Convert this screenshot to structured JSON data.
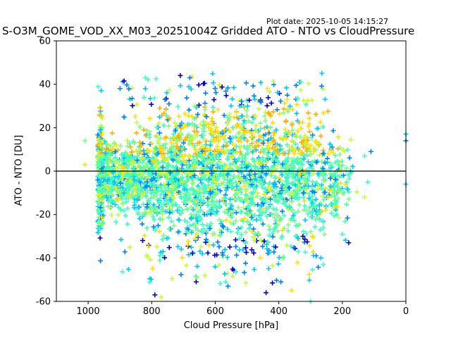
{
  "header": {
    "plot_date": "Plot date: 2025-10-05 14:15:27",
    "title": "S-O3M_GOME_VOD_XX_M03_20251004Z Gridded ATO - NTO vs CloudPressure"
  },
  "chart_data": {
    "type": "scatter",
    "marker": "plus",
    "title": "S-O3M_GOME_VOD_XX_M03_20251004Z Gridded ATO - NTO vs CloudPressure",
    "xlabel": "Cloud Pressure [hPa]",
    "ylabel": "ATO - NTO [DU]",
    "xlim": [
      1100,
      0
    ],
    "ylim": [
      -60,
      60
    ],
    "x_inverted": true,
    "xticks": [
      1000,
      800,
      600,
      400,
      200,
      0
    ],
    "yticks": [
      -60,
      -40,
      -20,
      0,
      20,
      40,
      60
    ],
    "reference_line_y": 0,
    "grid": false,
    "colors": [
      "#0000cd",
      "#0080ff",
      "#00c8ff",
      "#40ffc0",
      "#80ff80",
      "#c0ff40",
      "#ffe000",
      "#ffb000"
    ],
    "outliers": [
      {
        "x": 1010,
        "y": 14
      },
      {
        "x": 1010,
        "y": 3
      },
      {
        "x": 130,
        "y": 7
      },
      {
        "x": 110,
        "y": 9
      },
      {
        "x": 120,
        "y": -5
      },
      {
        "x": 130,
        "y": -12
      },
      {
        "x": 180,
        "y": -33
      },
      {
        "x": 200,
        "y": -29
      },
      {
        "x": 0,
        "y": 17
      },
      {
        "x": 0,
        "y": 14
      },
      {
        "x": 0,
        "y": -6
      },
      {
        "x": 710,
        "y": 44
      },
      {
        "x": 680,
        "y": 43
      },
      {
        "x": 820,
        "y": 43
      },
      {
        "x": 820,
        "y": 38
      },
      {
        "x": 260,
        "y": -43
      },
      {
        "x": 300,
        "y": -60
      },
      {
        "x": 440,
        "y": -56
      },
      {
        "x": 360,
        "y": -55
      },
      {
        "x": 790,
        "y": -57
      },
      {
        "x": 770,
        "y": -58
      },
      {
        "x": 660,
        "y": -51
      },
      {
        "x": 560,
        "y": -53
      },
      {
        "x": 330,
        "y": 41
      }
    ],
    "cloud": {
      "x_range": [
        1000,
        150
      ],
      "core_y_range": [
        -25,
        25
      ],
      "note": "dense cloud of points"
    }
  }
}
